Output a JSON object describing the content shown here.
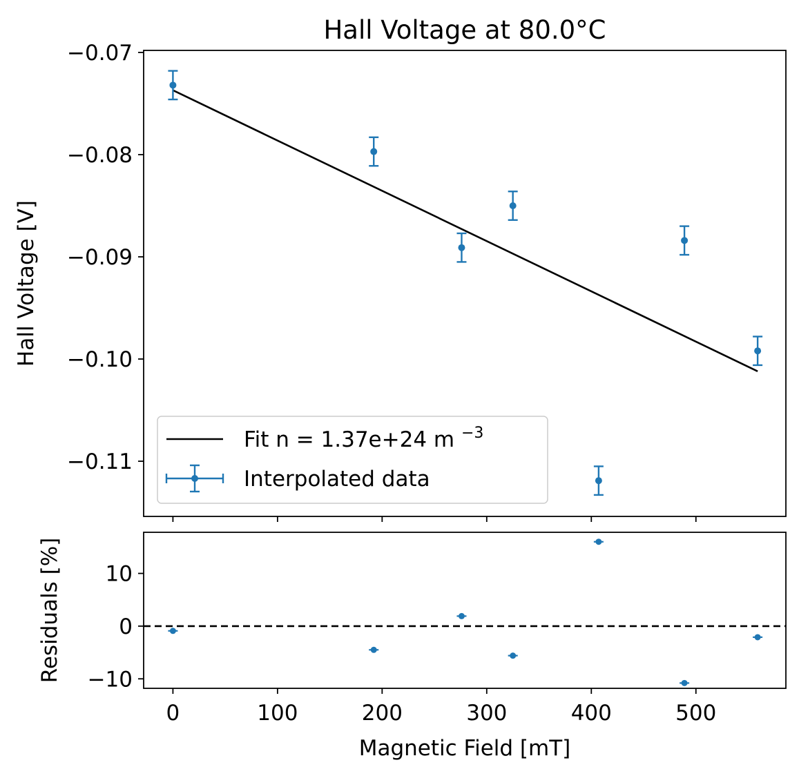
{
  "chart_data": [
    {
      "type": "scatter",
      "panel": "main",
      "title": "Hall Voltage at 80.0°C",
      "xlabel": "",
      "ylabel": "Hall Voltage [V]",
      "xlim": [
        -28,
        586
      ],
      "ylim": [
        -0.1154,
        -0.0698
      ],
      "yticks": [
        -0.07,
        -0.08,
        -0.09,
        -0.1,
        -0.11
      ],
      "ytick_labels": [
        "−0.07",
        "−0.08",
        "−0.09",
        "−0.10",
        "−0.11"
      ],
      "xticks": [
        0,
        100,
        200,
        300,
        400,
        500
      ],
      "colors": {
        "data": "#1f77b4",
        "fit": "#000000"
      },
      "series": [
        {
          "name": "Interpolated data",
          "kind": "errorbar",
          "x": [
            0,
            192,
            276,
            325,
            407,
            489,
            559
          ],
          "y": [
            -0.0732,
            -0.0797,
            -0.0891,
            -0.085,
            -0.1119,
            -0.0884,
            -0.0992
          ],
          "yerr": [
            0.0014,
            0.0014,
            0.0014,
            0.0014,
            0.0014,
            0.0014,
            0.0014
          ]
        },
        {
          "name": "Fit n = 1.37e+24 m",
          "name_superscript": "−3",
          "kind": "line",
          "x": [
            0,
            559
          ],
          "y": [
            -0.0737,
            -0.1012
          ]
        }
      ],
      "legend_position": "lower-left"
    },
    {
      "type": "scatter",
      "panel": "residuals",
      "xlabel": "Magnetic Field [mT]",
      "ylabel": "Residuals [%]",
      "xlim": [
        -28,
        586
      ],
      "ylim": [
        -11.8,
        17.8
      ],
      "yticks": [
        10,
        0,
        -10
      ],
      "ytick_labels": [
        "10",
        "0",
        "−10"
      ],
      "xticks": [
        0,
        100,
        200,
        300,
        400,
        500
      ],
      "xtick_labels": [
        "0",
        "100",
        "200",
        "300",
        "400",
        "500"
      ],
      "reference_line": {
        "y": 0,
        "style": "dashed",
        "color": "#000000"
      },
      "series": [
        {
          "kind": "points",
          "x": [
            0,
            192,
            276,
            325,
            407,
            489,
            559
          ],
          "y": [
            -0.9,
            -4.5,
            1.9,
            -5.6,
            16.0,
            -10.8,
            -2.1
          ]
        }
      ]
    }
  ]
}
